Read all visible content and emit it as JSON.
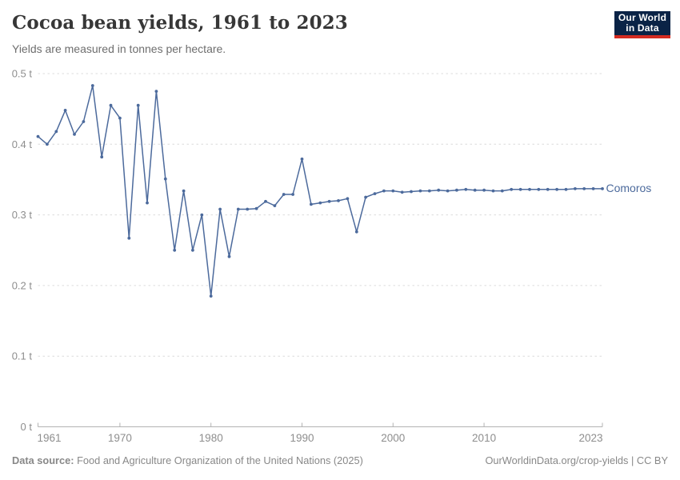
{
  "header": {
    "title": "Cocoa bean yields, 1961 to 2023",
    "subtitle": "Yields are measured in tonnes per hectare."
  },
  "logo": {
    "line1": "Our World",
    "line2": "in Data",
    "bg_color": "#0a2346",
    "accent_color": "#d42b21"
  },
  "series_label": "Comoros",
  "footer": {
    "source_label": "Data source:",
    "source_text": "Food and Agriculture Organization of the United Nations (2025)",
    "credit": "OurWorldinData.org/crop-yields | CC BY"
  },
  "chart_data": {
    "type": "line",
    "title": "Cocoa bean yields, 1961 to 2023",
    "ylabel": "tonnes per hectare",
    "unit": "t",
    "grid": "horizontal-dashed",
    "legend_position": "end-of-line-label",
    "ylim": [
      0,
      0.5
    ],
    "yticks": [
      0,
      0.1,
      0.2,
      0.3,
      0.4,
      0.5
    ],
    "ytick_labels": [
      "0 t",
      "0.1 t",
      "0.2 t",
      "0.3 t",
      "0.4 t",
      "0.5 t"
    ],
    "xticks": [
      1961,
      1970,
      1980,
      1990,
      2000,
      2010,
      2023
    ],
    "x": [
      1961,
      1962,
      1963,
      1964,
      1965,
      1966,
      1967,
      1968,
      1969,
      1970,
      1971,
      1972,
      1973,
      1974,
      1975,
      1976,
      1977,
      1978,
      1979,
      1980,
      1981,
      1982,
      1983,
      1984,
      1985,
      1986,
      1987,
      1988,
      1989,
      1990,
      1991,
      1992,
      1993,
      1994,
      1995,
      1996,
      1997,
      1998,
      1999,
      2000,
      2001,
      2002,
      2003,
      2004,
      2005,
      2006,
      2007,
      2008,
      2009,
      2010,
      2011,
      2012,
      2013,
      2014,
      2015,
      2016,
      2017,
      2018,
      2019,
      2020,
      2021,
      2022,
      2023
    ],
    "series": [
      {
        "name": "Comoros",
        "color": "#4c6a9c",
        "values": [
          0.411,
          0.4,
          0.418,
          0.448,
          0.414,
          0.432,
          0.483,
          0.382,
          0.455,
          0.437,
          0.267,
          0.455,
          0.317,
          0.475,
          0.351,
          0.25,
          0.334,
          0.25,
          0.3,
          0.185,
          0.308,
          0.241,
          0.308,
          0.308,
          0.309,
          0.319,
          0.313,
          0.329,
          0.329,
          0.379,
          0.315,
          0.317,
          0.319,
          0.32,
          0.323,
          0.276,
          0.325,
          0.33,
          0.334,
          0.334,
          0.332,
          0.333,
          0.334,
          0.334,
          0.335,
          0.334,
          0.335,
          0.336,
          0.335,
          0.335,
          0.334,
          0.334,
          0.336,
          0.336,
          0.336,
          0.336,
          0.336,
          0.336,
          0.336,
          0.337,
          0.337,
          0.337,
          0.337
        ]
      }
    ]
  }
}
